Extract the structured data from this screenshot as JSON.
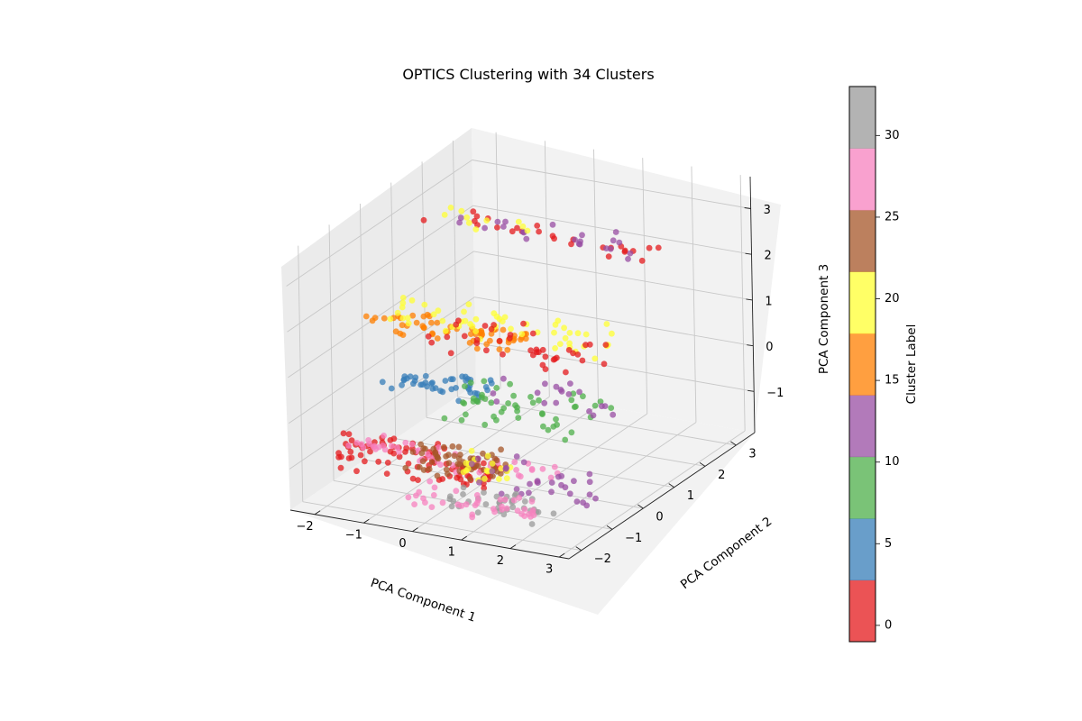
{
  "chart_data": {
    "type": "scatter",
    "projection": "3d",
    "title": "OPTICS Clustering with 34 Clusters",
    "xlabel": "PCA Component 1",
    "ylabel": "PCA Component 2",
    "zlabel": "PCA Component 3",
    "xlim": [
      -2.5,
      3.2
    ],
    "ylim": [
      -2.4,
      3.6
    ],
    "zlim": [
      -1.9,
      3.7
    ],
    "xticks": [
      "−2",
      "−1",
      "0",
      "1",
      "2",
      "3"
    ],
    "yticks": [
      "−2",
      "−1",
      "0",
      "1",
      "2",
      "3"
    ],
    "zticks": [
      "−1",
      "0",
      "1",
      "2",
      "3"
    ],
    "grid": true,
    "colorbar": {
      "label": "Cluster Label",
      "range": [
        -1,
        33
      ],
      "ticks": [
        "0",
        "5",
        "10",
        "15",
        "20",
        "25",
        "30"
      ],
      "colors": [
        "#e41a1c",
        "#377eb8",
        "#4daf4a",
        "#984ea3",
        "#ff7f00",
        "#ffff33",
        "#a65628",
        "#f781bf",
        "#999999"
      ]
    },
    "point_alpha": 0.75,
    "clusters": [
      {
        "label": 0,
        "color": "#e41a1c",
        "x": [
          -2.3,
          2.4
        ],
        "y": [
          1.5,
          2.1
        ],
        "z": [
          2.5,
          2.9
        ],
        "n": 26
      },
      {
        "label": 12,
        "color": "#984ea3",
        "x": [
          -1.6,
          2.1
        ],
        "y": [
          1.6,
          2.1
        ],
        "z": [
          2.4,
          2.9
        ],
        "n": 22
      },
      {
        "label": 21,
        "color": "#ffff33",
        "x": [
          -2.0,
          0.4
        ],
        "y": [
          1.4,
          1.9
        ],
        "z": [
          2.7,
          3.0
        ],
        "n": 10
      },
      {
        "label": 16,
        "color": "#ff7f00",
        "x": [
          -2.6,
          0.4
        ],
        "y": [
          0.2,
          0.9
        ],
        "z": [
          0.8,
          1.1
        ],
        "n": 60
      },
      {
        "label": 21,
        "color": "#ffff33",
        "x": [
          -2.3,
          2.2
        ],
        "y": [
          0.4,
          1.1
        ],
        "z": [
          0.9,
          1.4
        ],
        "n": 55
      },
      {
        "label": 1,
        "color": "#e41a1c",
        "x": [
          -1.4,
          2.0
        ],
        "y": [
          0.1,
          0.9
        ],
        "z": [
          0.5,
          1.2
        ],
        "n": 40
      },
      {
        "label": 5,
        "color": "#377eb8",
        "x": [
          -2.0,
          0.1
        ],
        "y": [
          -0.2,
          0.4
        ],
        "z": [
          -0.2,
          0.2
        ],
        "n": 45
      },
      {
        "label": 9,
        "color": "#4daf4a",
        "x": [
          -0.6,
          2.3
        ],
        "y": [
          -0.4,
          0.6
        ],
        "z": [
          -0.5,
          0.1
        ],
        "n": 50
      },
      {
        "label": 12,
        "color": "#984ea3",
        "x": [
          0.0,
          2.5
        ],
        "y": [
          -0.1,
          0.6
        ],
        "z": [
          -0.2,
          0.4
        ],
        "n": 18
      },
      {
        "label": 2,
        "color": "#e41a1c",
        "x": [
          -2.6,
          0.7
        ],
        "y": [
          -1.1,
          -0.3
        ],
        "z": [
          -1.6,
          -1.0
        ],
        "n": 90
      },
      {
        "label": 28,
        "color": "#f781bf",
        "x": [
          -2.5,
          1.9
        ],
        "y": [
          -1.0,
          -0.4
        ],
        "z": [
          -1.3,
          -1.0
        ],
        "n": 55
      },
      {
        "label": 24,
        "color": "#a65628",
        "x": [
          -1.1,
          0.8
        ],
        "y": [
          -0.9,
          -0.2
        ],
        "z": [
          -1.5,
          -1.0
        ],
        "n": 60
      },
      {
        "label": 21,
        "color": "#ffff33",
        "x": [
          -0.1,
          0.8
        ],
        "y": [
          -0.9,
          -0.4
        ],
        "z": [
          -1.5,
          -1.0
        ],
        "n": 20
      },
      {
        "label": 12,
        "color": "#984ea3",
        "x": [
          0.0,
          2.6
        ],
        "y": [
          -0.9,
          -0.2
        ],
        "z": [
          -1.7,
          -1.0
        ],
        "n": 30
      },
      {
        "label": 32,
        "color": "#999999",
        "x": [
          0.0,
          2.1
        ],
        "y": [
          -1.4,
          -0.9
        ],
        "z": [
          -1.9,
          -1.5
        ],
        "n": 35
      },
      {
        "label": 29,
        "color": "#f781bf",
        "x": [
          -0.7,
          1.9
        ],
        "y": [
          -1.5,
          -1.0
        ],
        "z": [
          -1.9,
          -1.5
        ],
        "n": 40
      }
    ]
  }
}
